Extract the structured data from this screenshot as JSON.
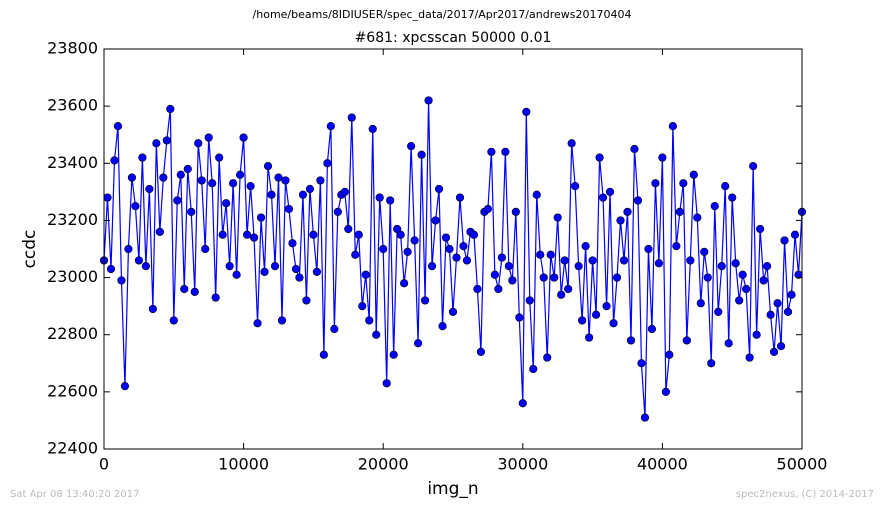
{
  "chart_data": {
    "type": "line",
    "path_title": "/home/beams/8IDIUSER/spec_data/2017/Apr2017/andrews20170404",
    "title": "#681: xpcsscan 50000 0.01",
    "x_label": "img_n",
    "y_label": "ccdc",
    "footer_left": "Sat Apr 08 13:40:20 2017",
    "footer_right": "spec2nexus, (C) 2014-2017",
    "xlim": [
      0,
      50000
    ],
    "xticks": [
      0,
      10000,
      20000,
      30000,
      40000,
      50000
    ],
    "ylim": [
      22400,
      23800
    ],
    "yticks": [
      22400,
      22600,
      22800,
      23000,
      23200,
      23400,
      23600,
      23800
    ],
    "grid": false,
    "x": [
      0,
      250,
      500,
      750,
      1000,
      1250,
      1500,
      1750,
      2000,
      2250,
      2500,
      2750,
      3000,
      3250,
      3500,
      3750,
      4000,
      4250,
      4500,
      4750,
      5000,
      5250,
      5500,
      5750,
      6000,
      6250,
      6500,
      6750,
      7000,
      7250,
      7500,
      7750,
      8000,
      8250,
      8500,
      8750,
      9000,
      9250,
      9500,
      9750,
      10000,
      10250,
      10500,
      10750,
      11000,
      11250,
      11500,
      11750,
      12000,
      12250,
      12500,
      12750,
      13000,
      13250,
      13500,
      13750,
      14000,
      14250,
      14500,
      14750,
      15000,
      15250,
      15500,
      15750,
      16000,
      16250,
      16500,
      16750,
      17000,
      17250,
      17500,
      17750,
      18000,
      18250,
      18500,
      18750,
      19000,
      19250,
      19500,
      19750,
      20000,
      20250,
      20500,
      20750,
      21000,
      21250,
      21500,
      21750,
      22000,
      22250,
      22500,
      22750,
      23000,
      23250,
      23500,
      23750,
      24000,
      24250,
      24500,
      24750,
      25000,
      25250,
      25500,
      25750,
      26000,
      26250,
      26500,
      26750,
      27000,
      27250,
      27500,
      27750,
      28000,
      28250,
      28500,
      28750,
      29000,
      29250,
      29500,
      29750,
      30000,
      30250,
      30500,
      30750,
      31000,
      31250,
      31500,
      31750,
      32000,
      32250,
      32500,
      32750,
      33000,
      33250,
      33500,
      33750,
      34000,
      34250,
      34500,
      34750,
      35000,
      35250,
      35500,
      35750,
      36000,
      36250,
      36500,
      36750,
      37000,
      37250,
      37500,
      37750,
      38000,
      38250,
      38500,
      38750,
      39000,
      39250,
      39500,
      39750,
      40000,
      40250,
      40500,
      40750,
      41000,
      41250,
      41500,
      41750,
      42000,
      42250,
      42500,
      42750,
      43000,
      43250,
      43500,
      43750,
      44000,
      44250,
      44500,
      44750,
      45000,
      45250,
      45500,
      45750,
      46000,
      46250,
      46500,
      46750,
      47000,
      47250,
      47500,
      47750,
      48000,
      48250,
      48500,
      48750,
      49000,
      49250,
      49500,
      49750,
      50000
    ],
    "series": [
      {
        "name": "ccdc",
        "color": "#0000ff",
        "values": [
          23060,
          23280,
          23030,
          23410,
          23530,
          22990,
          22620,
          23100,
          23350,
          23250,
          23060,
          23420,
          23040,
          23310,
          22890,
          23470,
          23160,
          23350,
          23480,
          23590,
          22850,
          23270,
          23360,
          22960,
          23380,
          23230,
          22950,
          23470,
          23340,
          23100,
          23490,
          23330,
          22930,
          23420,
          23150,
          23260,
          23040,
          23330,
          23010,
          23360,
          23490,
          23150,
          23320,
          23140,
          22840,
          23210,
          23020,
          23390,
          23290,
          23040,
          23350,
          22850,
          23340,
          23240,
          23120,
          23030,
          23000,
          23290,
          22920,
          23310,
          23150,
          23020,
          23340,
          22730,
          23400,
          23530,
          22820,
          23230,
          23290,
          23300,
          23170,
          23560,
          23080,
          23150,
          22900,
          23010,
          22850,
          23520,
          22800,
          23280,
          23100,
          22630,
          23270,
          22730,
          23170,
          23150,
          22980,
          23090,
          23460,
          23130,
          22770,
          23430,
          22920,
          23620,
          23040,
          23200,
          23310,
          22830,
          23140,
          23100,
          22880,
          23070,
          23280,
          23110,
          23060,
          23160,
          23150,
          22960,
          22740,
          23230,
          23240,
          23440,
          23010,
          22960,
          23070,
          23440,
          23040,
          22990,
          23230,
          22860,
          22560,
          23580,
          22920,
          22680,
          23290,
          23080,
          23000,
          22720,
          23080,
          23000,
          23210,
          22940,
          23060,
          22960,
          23470,
          23320,
          23040,
          22850,
          23110,
          22790,
          23060,
          22870,
          23420,
          23280,
          22900,
          23300,
          22840,
          23000,
          23200,
          23060,
          23230,
          22780,
          23450,
          23270,
          22700,
          22510,
          23100,
          22820,
          23330,
          23050,
          23420,
          22600,
          22730,
          23530,
          23110,
          23230,
          23330,
          22780,
          23060,
          23360,
          23210,
          22910,
          23090,
          23000,
          22700,
          23250,
          22880,
          23040,
          23320,
          22770,
          23280,
          23050,
          22920,
          23010,
          22960,
          22720,
          23390,
          22800,
          23170,
          22990,
          23040,
          22870,
          22740,
          22910,
          22760,
          23130,
          22880,
          22940,
          23150,
          23010,
          23230
        ]
      }
    ]
  }
}
